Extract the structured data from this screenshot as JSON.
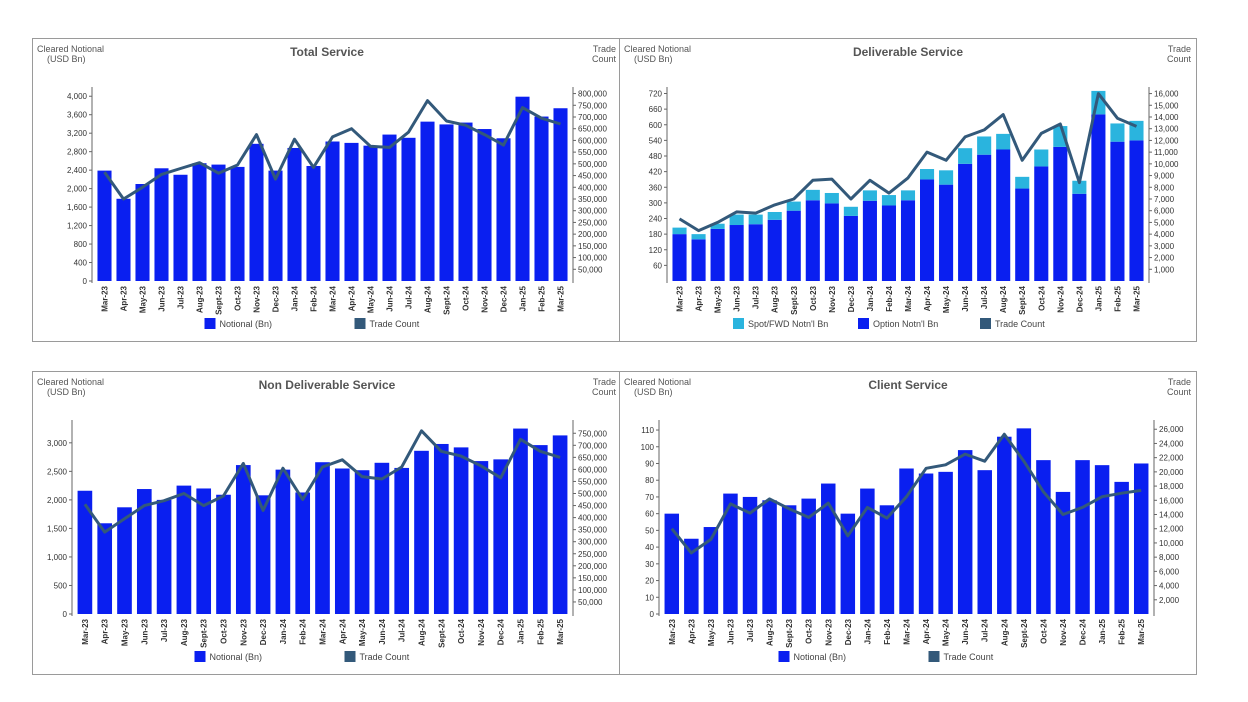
{
  "months": [
    "Mar-23",
    "Apr-23",
    "May-23",
    "Jun-23",
    "Jul-23",
    "Aug-23",
    "Sept-23",
    "Oct-23",
    "Nov-23",
    "Dec-23",
    "Jan-24",
    "Feb-24",
    "Mar-24",
    "Apr-24",
    "May-24",
    "Jun-24",
    "Jul-24",
    "Aug-24",
    "Sept-24",
    "Oct-24",
    "Nov-24",
    "Dec-24",
    "Jan-25",
    "Feb-25",
    "Mar-25"
  ],
  "colors": {
    "bar": "#0a1ff0",
    "spot": "#2ab4de",
    "line": "#33597a",
    "axis": "#666666"
  },
  "chart_data": [
    {
      "id": "total",
      "type": "bar",
      "title": "Total Service",
      "ylabel": "Cleared Notional\n(USD Bn)",
      "y2label": "Trade\nCount",
      "ylim": [
        0,
        4200
      ],
      "yticks": [
        0,
        400,
        800,
        1200,
        1600,
        2000,
        2400,
        2800,
        3200,
        3600,
        4000
      ],
      "y2lim": [
        0,
        828000
      ],
      "y2ticks": [
        50000,
        100000,
        150000,
        200000,
        250000,
        300000,
        350000,
        400000,
        450000,
        500000,
        550000,
        600000,
        650000,
        700000,
        750000,
        800000
      ],
      "series": [
        {
          "name": "Notional (Bn)",
          "kind": "bar",
          "values": [
            2390,
            1780,
            2100,
            2440,
            2300,
            2550,
            2520,
            2470,
            2970,
            2390,
            2880,
            2490,
            3020,
            2990,
            2930,
            3170,
            3100,
            3450,
            3390,
            3430,
            3290,
            3090,
            3990,
            3560,
            3740
          ]
        },
        {
          "name": "Trade Count",
          "kind": "line",
          "axis": "y2",
          "values": [
            465000,
            350000,
            400000,
            455000,
            480000,
            505000,
            460000,
            495000,
            625000,
            435000,
            605000,
            485000,
            615000,
            650000,
            575000,
            570000,
            635000,
            770000,
            683000,
            665000,
            625000,
            580000,
            740000,
            695000,
            670000
          ]
        }
      ],
      "legend": [
        "Notional (Bn)",
        "Trade Count"
      ]
    },
    {
      "id": "deliverable",
      "type": "bar",
      "title": "Deliverable Service",
      "ylabel": "Cleared Notional\n(USD Bn)",
      "y2label": "Trade\nCount",
      "ylim": [
        0,
        745
      ],
      "yticks": [
        60,
        120,
        180,
        240,
        300,
        360,
        420,
        480,
        540,
        600,
        660,
        720
      ],
      "y2lim": [
        0,
        16560
      ],
      "y2ticks": [
        1000,
        2000,
        3000,
        4000,
        5000,
        6000,
        7000,
        8000,
        9000,
        10000,
        11000,
        12000,
        13000,
        14000,
        15000,
        16000
      ],
      "stacked": true,
      "series": [
        {
          "name": "Option Notn'l Bn",
          "kind": "bar",
          "values": [
            180,
            160,
            200,
            215,
            218,
            235,
            270,
            310,
            298,
            250,
            308,
            290,
            310,
            390,
            370,
            450,
            485,
            505,
            355,
            440,
            515,
            335,
            640,
            535,
            540
          ]
        },
        {
          "name": "Spot/FWD Notn'l Bn",
          "kind": "bar",
          "values": [
            25,
            20,
            20,
            40,
            37,
            30,
            35,
            40,
            40,
            35,
            40,
            40,
            38,
            40,
            55,
            60,
            70,
            60,
            45,
            65,
            80,
            50,
            90,
            70,
            75
          ]
        },
        {
          "name": "Trade Count",
          "kind": "line",
          "axis": "y2",
          "values": [
            5300,
            4300,
            5000,
            5900,
            5800,
            6500,
            7000,
            8600,
            8700,
            7000,
            8600,
            7500,
            8800,
            11000,
            10300,
            12300,
            12900,
            14200,
            10300,
            12600,
            13400,
            8400,
            16000,
            13900,
            13200
          ]
        }
      ],
      "legend": [
        "Spot/FWD Notn'l Bn",
        "Option Notn'l Bn",
        "Trade Count"
      ]
    },
    {
      "id": "nondeliverable",
      "type": "bar",
      "title": "Non Deliverable Service",
      "ylabel": "Cleared Notional\n(USD Bn)",
      "y2label": "Trade\nCount",
      "ylim": [
        0,
        3400
      ],
      "yticks": [
        0,
        500,
        1000,
        1500,
        2000,
        2500,
        3000
      ],
      "y2lim": [
        0,
        805000
      ],
      "y2ticks": [
        50000,
        100000,
        150000,
        200000,
        250000,
        300000,
        350000,
        400000,
        450000,
        500000,
        550000,
        600000,
        650000,
        700000,
        750000
      ],
      "series": [
        {
          "name": "Notional (Bn)",
          "kind": "bar",
          "values": [
            2160,
            1590,
            1870,
            2190,
            2000,
            2250,
            2200,
            2090,
            2610,
            2080,
            2530,
            2130,
            2660,
            2550,
            2520,
            2650,
            2560,
            2860,
            2980,
            2920,
            2680,
            2710,
            3250,
            2960,
            3130
          ]
        },
        {
          "name": "Trade Count",
          "kind": "line",
          "axis": "y2",
          "values": [
            455000,
            340000,
            395000,
            450000,
            470000,
            500000,
            450000,
            490000,
            625000,
            430000,
            605000,
            475000,
            610000,
            640000,
            570000,
            560000,
            610000,
            760000,
            675000,
            655000,
            615000,
            565000,
            725000,
            675000,
            650000
          ]
        }
      ],
      "legend": [
        "Notional (Bn)",
        "Trade Count"
      ]
    },
    {
      "id": "client",
      "type": "bar",
      "title": "Client Service",
      "ylabel": "Cleared Notional\n(USD Bn)",
      "y2label": "Trade\nCount",
      "ylim": [
        0,
        116
      ],
      "yticks": [
        0,
        10,
        20,
        30,
        40,
        50,
        60,
        70,
        80,
        90,
        100,
        110
      ],
      "y2lim": [
        0,
        27300
      ],
      "y2ticks": [
        2000,
        4000,
        6000,
        8000,
        10000,
        12000,
        14000,
        16000,
        18000,
        20000,
        22000,
        24000,
        26000
      ],
      "series": [
        {
          "name": "Notional (Bn)",
          "kind": "bar",
          "values": [
            60,
            45,
            52,
            72,
            70,
            68,
            65,
            69,
            78,
            60,
            75,
            65,
            87,
            84,
            85,
            98,
            86,
            106,
            111,
            92,
            73,
            92,
            89,
            79,
            90
          ]
        },
        {
          "name": "Trade Count",
          "kind": "line",
          "axis": "y2",
          "values": [
            12000,
            8600,
            10500,
            15500,
            14200,
            16200,
            14800,
            13600,
            15600,
            11000,
            15000,
            13500,
            16500,
            20500,
            21000,
            22500,
            21500,
            25300,
            21500,
            17200,
            14000,
            15000,
            16500,
            17000,
            17400
          ]
        }
      ],
      "legend": [
        "Notional (Bn)",
        "Trade Count"
      ]
    }
  ]
}
